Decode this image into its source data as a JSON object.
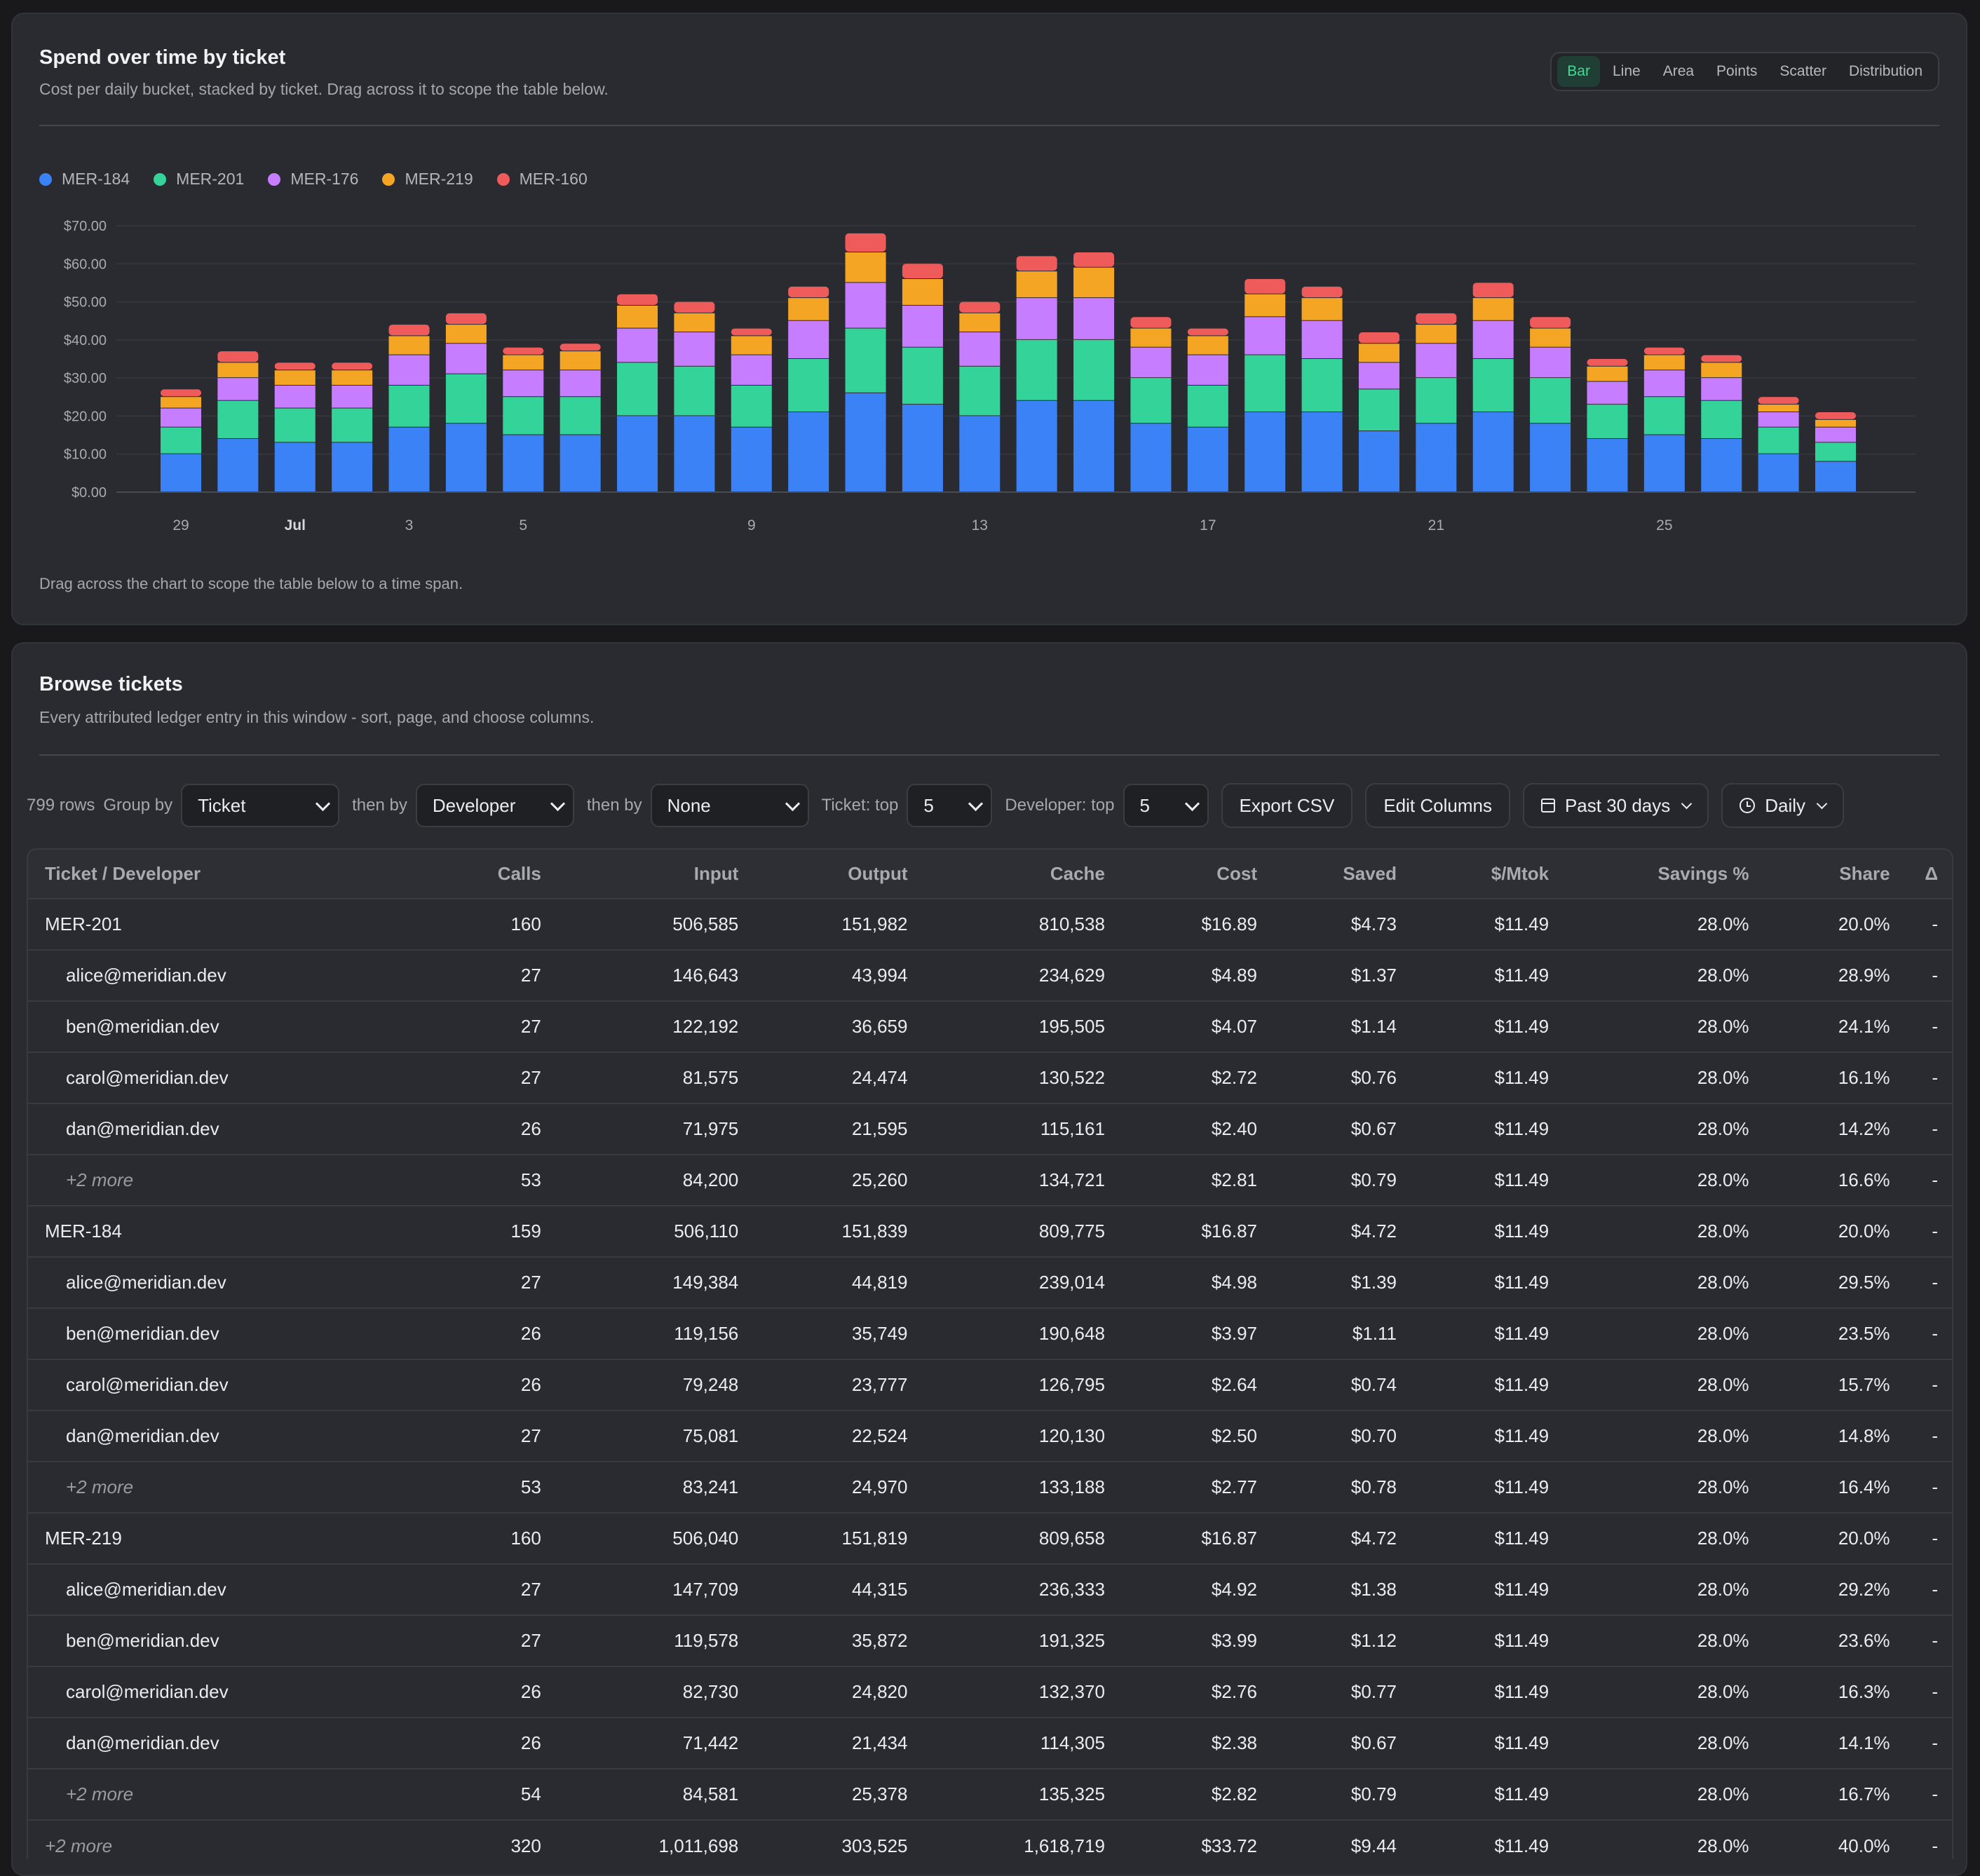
{
  "chart_card": {
    "title": "Spend over time by ticket",
    "subtitle": "Cost per daily bucket, stacked by ticket. Drag across it to scope the table below.",
    "view_options": [
      "Bar",
      "Line",
      "Area",
      "Points",
      "Scatter",
      "Distribution"
    ],
    "active_view": "Bar",
    "note": "Drag across the chart to scope the table below to a time span."
  },
  "chart_data": {
    "type": "bar",
    "stacked": true,
    "y_tick_labels": [
      "$0.00",
      "$10.00",
      "$20.00",
      "$30.00",
      "$40.00",
      "$50.00",
      "$60.00",
      "$70.00"
    ],
    "ylim": [
      0,
      70
    ],
    "grid": true,
    "legend_position": "top-left",
    "x_tick_labels": [
      "29",
      "Jul",
      "3",
      "5",
      "9",
      "13",
      "17",
      "21",
      "25"
    ],
    "x_ticks_at": [
      0,
      2,
      4,
      6,
      10,
      14,
      18,
      22,
      26
    ],
    "x_bold_ticks": [
      "Jul"
    ],
    "series": [
      {
        "name": "MER-184",
        "color": "#3b82f6",
        "values": [
          10,
          14,
          13,
          13,
          17,
          18,
          15,
          15,
          20,
          20,
          17,
          21,
          26,
          23,
          20,
          24,
          24,
          18,
          17,
          21,
          21,
          16,
          18,
          21,
          18,
          14,
          15,
          14,
          10,
          8
        ]
      },
      {
        "name": "MER-201",
        "color": "#34d399",
        "values": [
          7,
          10,
          9,
          9,
          11,
          13,
          10,
          10,
          14,
          13,
          11,
          14,
          17,
          15,
          13,
          16,
          16,
          12,
          11,
          15,
          14,
          11,
          12,
          14,
          12,
          9,
          10,
          10,
          7,
          5
        ]
      },
      {
        "name": "MER-176",
        "color": "#c77dff",
        "values": [
          5,
          6,
          6,
          6,
          8,
          8,
          7,
          7,
          9,
          9,
          8,
          10,
          12,
          11,
          9,
          11,
          11,
          8,
          8,
          10,
          10,
          7,
          9,
          10,
          8,
          6,
          7,
          6,
          4,
          4
        ]
      },
      {
        "name": "MER-219",
        "color": "#f5a524",
        "values": [
          3,
          4,
          4,
          4,
          5,
          5,
          4,
          5,
          6,
          5,
          5,
          6,
          8,
          7,
          5,
          7,
          8,
          5,
          5,
          6,
          6,
          5,
          5,
          6,
          5,
          4,
          4,
          4,
          2,
          2
        ]
      },
      {
        "name": "MER-160",
        "color": "#ef5b5b",
        "values": [
          2,
          3,
          2,
          2,
          3,
          3,
          2,
          2,
          3,
          3,
          2,
          3,
          5,
          4,
          3,
          4,
          4,
          3,
          2,
          4,
          3,
          3,
          3,
          4,
          3,
          2,
          2,
          2,
          2,
          2
        ]
      }
    ]
  },
  "table_card": {
    "title": "Browse tickets",
    "subtitle": "Every attributed ledger entry in this window - sort, page, and choose columns."
  },
  "toolbar": {
    "row_count": "799 rows",
    "group_by_label": "Group by",
    "group_by_value": "Ticket",
    "then_by_label_1": "then by",
    "then_by_value_1": "Developer",
    "then_by_label_2": "then by",
    "then_by_value_2": "None",
    "ticket_top_label": "Ticket: top",
    "ticket_top_value": "5",
    "developer_top_label": "Developer: top",
    "developer_top_value": "5",
    "export_label": "Export CSV",
    "edit_columns_label": "Edit Columns",
    "range_label": "Past 30 days",
    "granularity_label": "Daily"
  },
  "table": {
    "columns": [
      "Ticket / Developer",
      "Calls",
      "Input",
      "Output",
      "Cache",
      "Cost",
      "Saved",
      "$/Mtok",
      "Savings %",
      "Share",
      "Δ"
    ],
    "rows": [
      {
        "kind": "group",
        "cells": [
          "MER-201",
          "160",
          "506,585",
          "151,982",
          "810,538",
          "$16.89",
          "$4.73",
          "$11.49",
          "28.0%",
          "20.0%",
          "-"
        ]
      },
      {
        "kind": "child",
        "cells": [
          "alice@meridian.dev",
          "27",
          "146,643",
          "43,994",
          "234,629",
          "$4.89",
          "$1.37",
          "$11.49",
          "28.0%",
          "28.9%",
          "-"
        ]
      },
      {
        "kind": "child",
        "cells": [
          "ben@meridian.dev",
          "27",
          "122,192",
          "36,659",
          "195,505",
          "$4.07",
          "$1.14",
          "$11.49",
          "28.0%",
          "24.1%",
          "-"
        ]
      },
      {
        "kind": "child",
        "cells": [
          "carol@meridian.dev",
          "27",
          "81,575",
          "24,474",
          "130,522",
          "$2.72",
          "$0.76",
          "$11.49",
          "28.0%",
          "16.1%",
          "-"
        ]
      },
      {
        "kind": "child",
        "cells": [
          "dan@meridian.dev",
          "26",
          "71,975",
          "21,595",
          "115,161",
          "$2.40",
          "$0.67",
          "$11.49",
          "28.0%",
          "14.2%",
          "-"
        ]
      },
      {
        "kind": "child-more",
        "cells": [
          "+2 more",
          "53",
          "84,200",
          "25,260",
          "134,721",
          "$2.81",
          "$0.79",
          "$11.49",
          "28.0%",
          "16.6%",
          "-"
        ]
      },
      {
        "kind": "group",
        "cells": [
          "MER-184",
          "159",
          "506,110",
          "151,839",
          "809,775",
          "$16.87",
          "$4.72",
          "$11.49",
          "28.0%",
          "20.0%",
          "-"
        ]
      },
      {
        "kind": "child",
        "cells": [
          "alice@meridian.dev",
          "27",
          "149,384",
          "44,819",
          "239,014",
          "$4.98",
          "$1.39",
          "$11.49",
          "28.0%",
          "29.5%",
          "-"
        ]
      },
      {
        "kind": "child",
        "cells": [
          "ben@meridian.dev",
          "26",
          "119,156",
          "35,749",
          "190,648",
          "$3.97",
          "$1.11",
          "$11.49",
          "28.0%",
          "23.5%",
          "-"
        ]
      },
      {
        "kind": "child",
        "cells": [
          "carol@meridian.dev",
          "26",
          "79,248",
          "23,777",
          "126,795",
          "$2.64",
          "$0.74",
          "$11.49",
          "28.0%",
          "15.7%",
          "-"
        ]
      },
      {
        "kind": "child",
        "cells": [
          "dan@meridian.dev",
          "27",
          "75,081",
          "22,524",
          "120,130",
          "$2.50",
          "$0.70",
          "$11.49",
          "28.0%",
          "14.8%",
          "-"
        ]
      },
      {
        "kind": "child-more",
        "cells": [
          "+2 more",
          "53",
          "83,241",
          "24,970",
          "133,188",
          "$2.77",
          "$0.78",
          "$11.49",
          "28.0%",
          "16.4%",
          "-"
        ]
      },
      {
        "kind": "group",
        "cells": [
          "MER-219",
          "160",
          "506,040",
          "151,819",
          "809,658",
          "$16.87",
          "$4.72",
          "$11.49",
          "28.0%",
          "20.0%",
          "-"
        ]
      },
      {
        "kind": "child",
        "cells": [
          "alice@meridian.dev",
          "27",
          "147,709",
          "44,315",
          "236,333",
          "$4.92",
          "$1.38",
          "$11.49",
          "28.0%",
          "29.2%",
          "-"
        ]
      },
      {
        "kind": "child",
        "cells": [
          "ben@meridian.dev",
          "27",
          "119,578",
          "35,872",
          "191,325",
          "$3.99",
          "$1.12",
          "$11.49",
          "28.0%",
          "23.6%",
          "-"
        ]
      },
      {
        "kind": "child",
        "cells": [
          "carol@meridian.dev",
          "26",
          "82,730",
          "24,820",
          "132,370",
          "$2.76",
          "$0.77",
          "$11.49",
          "28.0%",
          "16.3%",
          "-"
        ]
      },
      {
        "kind": "child",
        "cells": [
          "dan@meridian.dev",
          "26",
          "71,442",
          "21,434",
          "114,305",
          "$2.38",
          "$0.67",
          "$11.49",
          "28.0%",
          "14.1%",
          "-"
        ]
      },
      {
        "kind": "child-more",
        "cells": [
          "+2 more",
          "54",
          "84,581",
          "25,378",
          "135,325",
          "$2.82",
          "$0.79",
          "$11.49",
          "28.0%",
          "16.7%",
          "-"
        ]
      },
      {
        "kind": "group-more",
        "cells": [
          "+2 more",
          "320",
          "1,011,698",
          "303,525",
          "1,618,719",
          "$33.72",
          "$9.44",
          "$11.49",
          "28.0%",
          "40.0%",
          "-"
        ]
      }
    ]
  }
}
